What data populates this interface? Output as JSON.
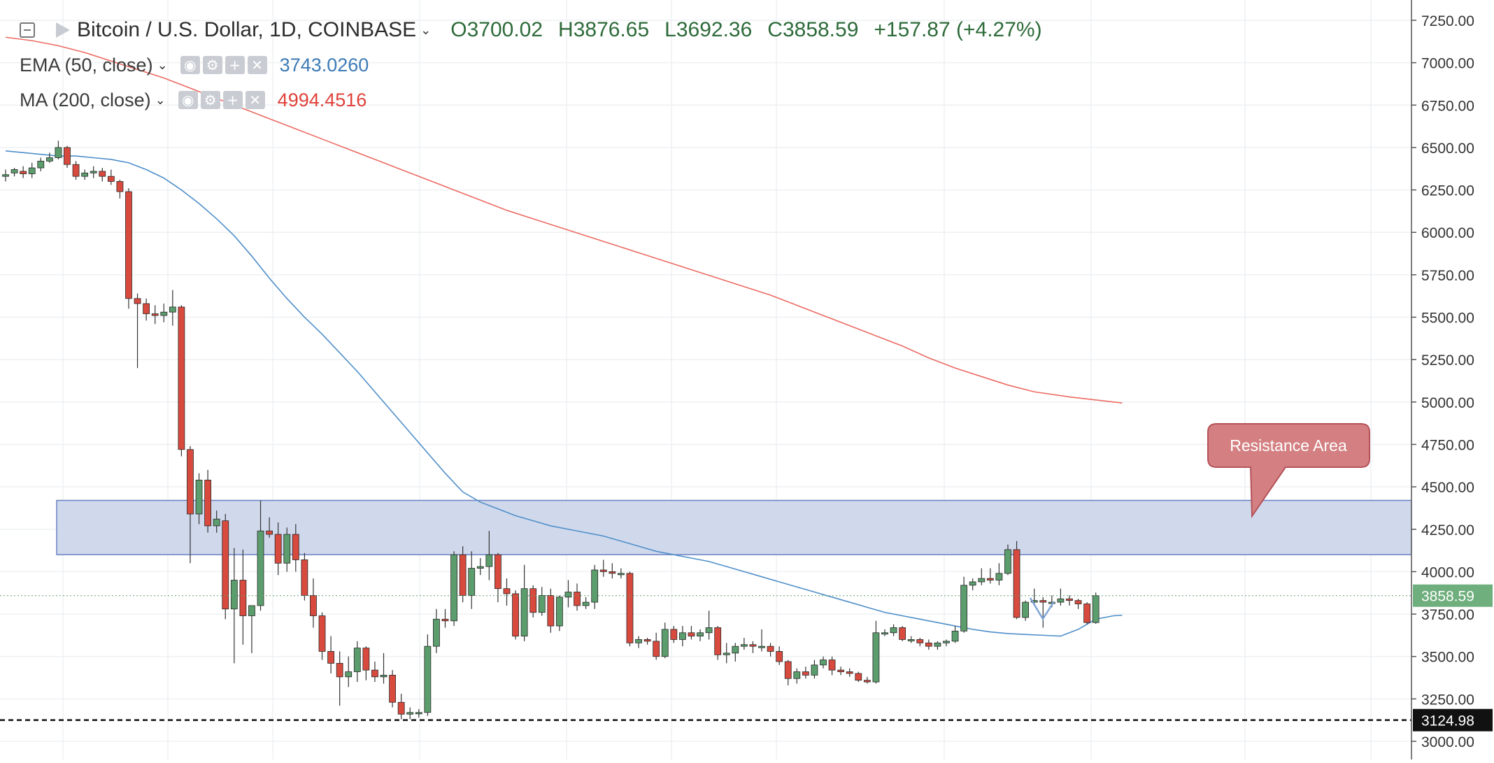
{
  "legend": {
    "symbol": "Bitcoin / U.S. Dollar, 1D, COINBASE",
    "open": "O3700.02",
    "high": "H3876.65",
    "low": "L3692.36",
    "close": "C3858.59",
    "change": "+157.87 (+4.27%)",
    "ema_label": "EMA (50, close)",
    "ema_value": "3743.0260",
    "ma_label": "MA (200, close)",
    "ma_value": "4994.4516"
  },
  "annotation": {
    "text": "Resistance Area"
  },
  "price_tags": {
    "last": "3858.59",
    "low_line": "3124.98"
  },
  "colors": {
    "up": "#5b9d6c",
    "down": "#d84a3e",
    "ema": "#4f8fc9",
    "ma": "#ec6b63",
    "zone_fill": "#cbd4ea",
    "zone_border": "#6a82c2",
    "callout_fill": "#d48082",
    "callout_border": "#b5535a"
  },
  "chart_data": {
    "type": "candlestick",
    "ylim": [
      2900,
      7330
    ],
    "y_ticks": [
      "7250.00",
      "7000.00",
      "6750.00",
      "6500.00",
      "6250.00",
      "6000.00",
      "5750.00",
      "5500.00",
      "5250.00",
      "5000.00",
      "4750.00",
      "4500.00",
      "4250.00",
      "4000.00",
      "3750.00",
      "3500.00",
      "3250.00",
      "3000.00"
    ],
    "resistance_zone": [
      4100,
      4420
    ],
    "candles": [
      [
        6330,
        6370,
        6300,
        6340
      ],
      [
        6350,
        6380,
        6330,
        6370
      ],
      [
        6360,
        6390,
        6320,
        6345
      ],
      [
        6345,
        6410,
        6320,
        6380
      ],
      [
        6380,
        6440,
        6360,
        6420
      ],
      [
        6420,
        6470,
        6410,
        6440
      ],
      [
        6440,
        6540,
        6430,
        6500
      ],
      [
        6500,
        6510,
        6380,
        6400
      ],
      [
        6400,
        6420,
        6310,
        6330
      ],
      [
        6330,
        6370,
        6310,
        6350
      ],
      [
        6350,
        6390,
        6320,
        6360
      ],
      [
        6360,
        6380,
        6300,
        6330
      ],
      [
        6330,
        6370,
        6280,
        6300
      ],
      [
        6300,
        6310,
        6200,
        6240
      ],
      [
        6240,
        6260,
        5550,
        5610
      ],
      [
        5610,
        5640,
        5200,
        5580
      ],
      [
        5580,
        5610,
        5480,
        5520
      ],
      [
        5520,
        5570,
        5460,
        5510
      ],
      [
        5510,
        5580,
        5470,
        5530
      ],
      [
        5530,
        5660,
        5450,
        5560
      ],
      [
        5560,
        5570,
        4680,
        4720
      ],
      [
        4720,
        4740,
        4050,
        4340
      ],
      [
        4340,
        4580,
        4280,
        4540
      ],
      [
        4540,
        4600,
        4230,
        4270
      ],
      [
        4270,
        4360,
        4230,
        4310
      ],
      [
        4300,
        4340,
        3720,
        3780
      ],
      [
        3780,
        4140,
        3460,
        3950
      ],
      [
        3950,
        4130,
        3570,
        3740
      ],
      [
        3740,
        3800,
        3520,
        3800
      ],
      [
        3800,
        4420,
        3770,
        4240
      ],
      [
        4240,
        4320,
        4200,
        4220
      ],
      [
        4220,
        4290,
        3980,
        4050
      ],
      [
        4050,
        4260,
        4000,
        4220
      ],
      [
        4220,
        4280,
        4000,
        4070
      ],
      [
        4070,
        4110,
        3830,
        3860
      ],
      [
        3860,
        3960,
        3670,
        3740
      ],
      [
        3740,
        3760,
        3480,
        3530
      ],
      [
        3530,
        3620,
        3400,
        3460
      ],
      [
        3460,
        3530,
        3210,
        3380
      ],
      [
        3380,
        3500,
        3320,
        3410
      ],
      [
        3410,
        3590,
        3350,
        3550
      ],
      [
        3550,
        3560,
        3360,
        3420
      ],
      [
        3420,
        3470,
        3350,
        3380
      ],
      [
        3380,
        3520,
        3340,
        3390
      ],
      [
        3390,
        3420,
        3200,
        3230
      ],
      [
        3230,
        3280,
        3130,
        3160
      ],
      [
        3160,
        3200,
        3130,
        3170
      ],
      [
        3170,
        3190,
        3140,
        3170
      ],
      [
        3170,
        3630,
        3150,
        3560
      ],
      [
        3560,
        3780,
        3520,
        3720
      ],
      [
        3720,
        3780,
        3670,
        3710
      ],
      [
        3710,
        4120,
        3680,
        4100
      ],
      [
        4100,
        4150,
        3820,
        3860
      ],
      [
        3860,
        4120,
        3780,
        4020
      ],
      [
        4020,
        4080,
        3980,
        4030
      ],
      [
        4030,
        4240,
        3950,
        4100
      ],
      [
        4100,
        4110,
        3820,
        3900
      ],
      [
        3900,
        3960,
        3800,
        3870
      ],
      [
        3870,
        3890,
        3600,
        3620
      ],
      [
        3620,
        4040,
        3590,
        3900
      ],
      [
        3900,
        3920,
        3730,
        3760
      ],
      [
        3760,
        3910,
        3740,
        3860
      ],
      [
        3860,
        3900,
        3640,
        3680
      ],
      [
        3680,
        3860,
        3650,
        3850
      ],
      [
        3850,
        3950,
        3790,
        3880
      ],
      [
        3880,
        3930,
        3770,
        3800
      ],
      [
        3800,
        3850,
        3780,
        3820
      ],
      [
        3820,
        4040,
        3780,
        4010
      ],
      [
        4010,
        4070,
        3970,
        4000
      ],
      [
        4000,
        4050,
        3960,
        3990
      ],
      [
        3990,
        4020,
        3960,
        3990
      ],
      [
        3990,
        4000,
        3560,
        3580
      ],
      [
        3580,
        3620,
        3550,
        3600
      ],
      [
        3600,
        3610,
        3570,
        3590
      ],
      [
        3590,
        3640,
        3480,
        3500
      ],
      [
        3500,
        3700,
        3490,
        3660
      ],
      [
        3660,
        3680,
        3580,
        3600
      ],
      [
        3600,
        3680,
        3560,
        3640
      ],
      [
        3640,
        3680,
        3600,
        3620
      ],
      [
        3620,
        3660,
        3590,
        3640
      ],
      [
        3640,
        3770,
        3600,
        3670
      ],
      [
        3670,
        3680,
        3480,
        3510
      ],
      [
        3510,
        3580,
        3460,
        3520
      ],
      [
        3520,
        3580,
        3470,
        3560
      ],
      [
        3560,
        3610,
        3540,
        3570
      ],
      [
        3570,
        3590,
        3520,
        3560
      ],
      [
        3560,
        3660,
        3530,
        3560
      ],
      [
        3560,
        3580,
        3500,
        3530
      ],
      [
        3530,
        3560,
        3450,
        3470
      ],
      [
        3470,
        3480,
        3330,
        3370
      ],
      [
        3370,
        3430,
        3340,
        3410
      ],
      [
        3410,
        3440,
        3370,
        3390
      ],
      [
        3390,
        3480,
        3370,
        3450
      ],
      [
        3450,
        3500,
        3430,
        3480
      ],
      [
        3480,
        3500,
        3390,
        3420
      ],
      [
        3420,
        3440,
        3390,
        3410
      ],
      [
        3410,
        3430,
        3380,
        3400
      ],
      [
        3400,
        3410,
        3350,
        3360
      ],
      [
        3360,
        3380,
        3340,
        3350
      ],
      [
        3350,
        3710,
        3340,
        3640
      ],
      [
        3640,
        3660,
        3620,
        3640
      ],
      [
        3640,
        3690,
        3620,
        3670
      ],
      [
        3670,
        3680,
        3590,
        3600
      ],
      [
        3600,
        3620,
        3580,
        3600
      ],
      [
        3600,
        3610,
        3560,
        3580
      ],
      [
        3580,
        3600,
        3540,
        3560
      ],
      [
        3560,
        3590,
        3540,
        3580
      ],
      [
        3580,
        3600,
        3560,
        3590
      ],
      [
        3590,
        3680,
        3580,
        3650
      ],
      [
        3650,
        3970,
        3640,
        3920
      ],
      [
        3920,
        3960,
        3890,
        3940
      ],
      [
        3940,
        4020,
        3920,
        3960
      ],
      [
        3960,
        4020,
        3930,
        3950
      ],
      [
        3950,
        4050,
        3920,
        3990
      ],
      [
        3990,
        4160,
        3980,
        4130
      ],
      [
        4130,
        4180,
        3720,
        3730
      ],
      [
        3730,
        3830,
        3710,
        3820
      ],
      [
        3820,
        3900,
        3800,
        3830
      ],
      [
        3830,
        3850,
        3670,
        3820
      ],
      [
        3820,
        3860,
        3790,
        3820
      ],
      [
        3820,
        3900,
        3800,
        3840
      ],
      [
        3840,
        3860,
        3800,
        3830
      ],
      [
        3830,
        3840,
        3780,
        3810
      ],
      [
        3810,
        3820,
        3690,
        3700
      ],
      [
        3700.02,
        3876.65,
        3692.36,
        3858.59
      ]
    ],
    "ema50": [
      6480,
      6470,
      6460,
      6450,
      6450,
      6440,
      6430,
      6410,
      6370,
      6320,
      6250,
      6170,
      6080,
      5980,
      5860,
      5730,
      5610,
      5500,
      5400,
      5290,
      5180,
      5060,
      4940,
      4820,
      4700,
      4580,
      4470,
      4410,
      4370,
      4330,
      4300,
      4270,
      4250,
      4230,
      4210,
      4180,
      4150,
      4120,
      4100,
      4080,
      4060,
      4030,
      4000,
      3970,
      3940,
      3910,
      3880,
      3850,
      3820,
      3790,
      3760,
      3740,
      3720,
      3700,
      3680,
      3660,
      3645,
      3635,
      3630,
      3625,
      3620,
      3660,
      3720,
      3740,
      3743.026
    ],
    "ema50_idx": [
      0,
      2,
      4,
      6,
      8,
      10,
      12,
      14,
      16,
      18,
      20,
      22,
      24,
      26,
      28,
      30,
      32,
      34,
      36,
      38,
      40,
      42,
      44,
      46,
      48,
      50,
      52,
      54,
      56,
      58,
      60,
      62,
      64,
      66,
      68,
      70,
      72,
      74,
      76,
      78,
      80,
      82,
      84,
      86,
      88,
      90,
      92,
      94,
      96,
      98,
      100,
      102,
      104,
      106,
      108,
      110,
      112,
      114,
      116,
      118,
      120,
      122,
      124,
      126,
      127
    ],
    "ma200": [
      7150,
      7130,
      7100,
      7060,
      7010,
      6960,
      6910,
      6850,
      6790,
      6730,
      6670,
      6610,
      6550,
      6490,
      6430,
      6370,
      6310,
      6250,
      6190,
      6130,
      6080,
      6030,
      5980,
      5930,
      5880,
      5830,
      5780,
      5730,
      5680,
      5630,
      5570,
      5510,
      5450,
      5390,
      5330,
      5260,
      5200,
      5150,
      5100,
      5060,
      5030,
      4994.4516
    ],
    "ma200_idx": [
      0,
      3,
      6,
      9,
      12,
      15,
      18,
      21,
      24,
      27,
      30,
      33,
      36,
      39,
      42,
      45,
      48,
      51,
      54,
      57,
      60,
      63,
      66,
      69,
      72,
      75,
      78,
      81,
      84,
      87,
      90,
      93,
      96,
      99,
      102,
      105,
      108,
      111,
      114,
      117,
      121,
      127
    ],
    "low_line": 3124.98,
    "last_price": 3858.59
  }
}
